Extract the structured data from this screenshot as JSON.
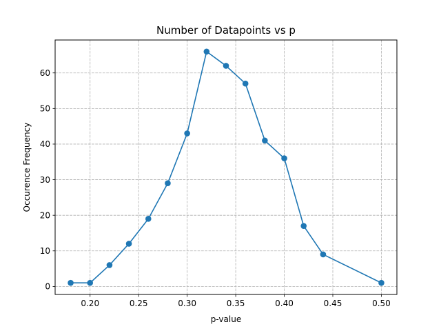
{
  "chart_data": {
    "type": "line",
    "title": "Number of Datapoints vs p",
    "xlabel": "p-value",
    "ylabel": "Occurence Frequency",
    "x": [
      0.18,
      0.2,
      0.22,
      0.24,
      0.26,
      0.28,
      0.3,
      0.32,
      0.34,
      0.36,
      0.38,
      0.4,
      0.42,
      0.44,
      0.5
    ],
    "y": [
      1,
      1,
      6,
      12,
      19,
      29,
      43,
      66,
      62,
      57,
      41,
      36,
      17,
      9,
      1
    ],
    "xlim": [
      0.164,
      0.516
    ],
    "ylim": [
      -2.25,
      69.25
    ],
    "xticks": [
      "0.20",
      "0.25",
      "0.30",
      "0.35",
      "0.40",
      "0.45",
      "0.50"
    ],
    "yticks": [
      "0",
      "10",
      "20",
      "30",
      "40",
      "50",
      "60"
    ],
    "grid": true,
    "grid_style": "dashed",
    "line_color": "#1f77b4",
    "marker": "circle"
  }
}
